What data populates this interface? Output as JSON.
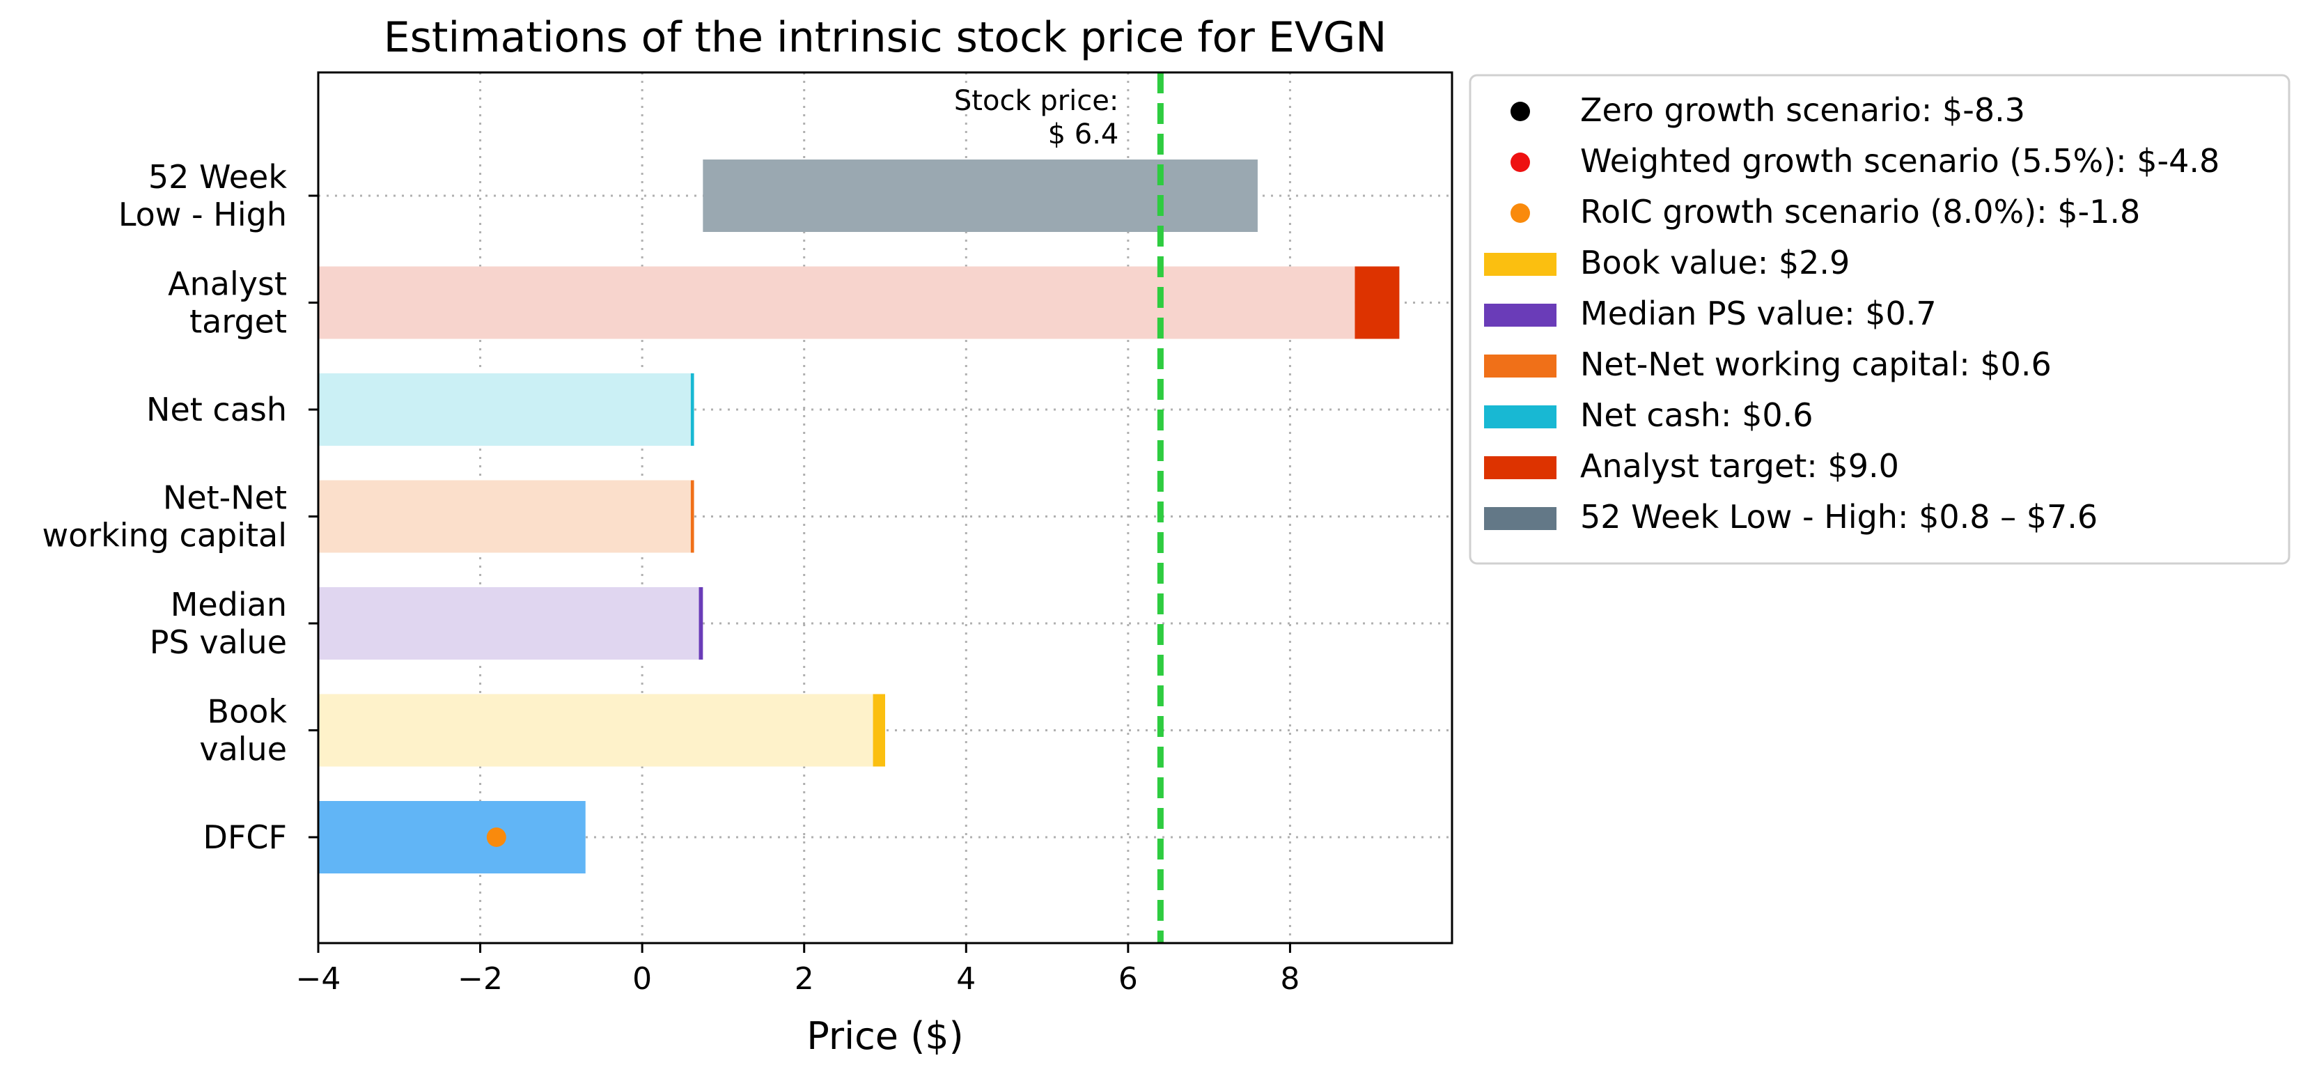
{
  "chart_data": {
    "type": "bar",
    "orientation": "horizontal",
    "title": "Estimations of the intrinsic stock price for EVGN",
    "xlabel": "Price ($)",
    "ylabel": "",
    "xlim": [
      -4,
      10
    ],
    "xticks": [
      -4,
      -2,
      0,
      2,
      4,
      6,
      8
    ],
    "xtick_labels": [
      "−4",
      "−2",
      "0",
      "2",
      "4",
      "6",
      "8"
    ],
    "grid": true,
    "legend_position": "outside-right-top",
    "categories": [
      [
        "52 Week",
        "Low - High"
      ],
      [
        "Analyst",
        "target"
      ],
      [
        "Net cash"
      ],
      [
        "Net-Net",
        "working capital"
      ],
      [
        "Median",
        "PS value"
      ],
      [
        "Book",
        "value"
      ],
      [
        "DFCF"
      ]
    ],
    "bars": [
      {
        "category": 0,
        "start": 0.75,
        "end": 7.6,
        "color": "#9aa8b1"
      },
      {
        "category": 1,
        "start": -4,
        "end": 8.8,
        "color": "#f7d4cd"
      },
      {
        "category": 1,
        "start": 8.8,
        "end": 9.35,
        "color": "#dd3300"
      },
      {
        "category": 2,
        "start": -4,
        "end": 0.6,
        "color": "#cbf0f5"
      },
      {
        "category": 2,
        "start": 0.6,
        "end": 0.64,
        "color": "#18b8d3"
      },
      {
        "category": 3,
        "start": -4,
        "end": 0.6,
        "color": "#fbdfcb"
      },
      {
        "category": 3,
        "start": 0.6,
        "end": 0.64,
        "color": "#f07018"
      },
      {
        "category": 4,
        "start": -4,
        "end": 0.7,
        "color": "#e0d6f0"
      },
      {
        "category": 4,
        "start": 0.7,
        "end": 0.75,
        "color": "#6a3cb8"
      },
      {
        "category": 5,
        "start": -4,
        "end": 2.85,
        "color": "#fef2ca"
      },
      {
        "category": 5,
        "start": 2.85,
        "end": 3.0,
        "color": "#fbbf10"
      },
      {
        "category": 6,
        "start": -4,
        "end": -0.7,
        "color": "#61b5f6"
      }
    ],
    "points": [
      {
        "category": 6,
        "x": -1.8,
        "color": "#f98a0c"
      }
    ],
    "stock_price": {
      "value": 6.4,
      "label_line1": "Stock price:",
      "label_line2": "$ 6.4",
      "color": "#2ecc40"
    },
    "legend": [
      {
        "label": "Zero growth scenario: $-8.3",
        "marker": "dot",
        "color": "#000000"
      },
      {
        "label": "Weighted growth scenario (5.5%): $-4.8",
        "marker": "dot",
        "color": "#ee1111"
      },
      {
        "label": "RoIC growth scenario (8.0%): $-1.8",
        "marker": "dot",
        "color": "#f98a0c"
      },
      {
        "label": "Book value: $2.9",
        "marker": "patch",
        "color": "#fbbf10"
      },
      {
        "label": "Median PS value: $0.7",
        "marker": "patch",
        "color": "#6a3cb8"
      },
      {
        "label": "Net-Net working capital: $0.6",
        "marker": "patch",
        "color": "#f07018"
      },
      {
        "label": "Net cash: $0.6",
        "marker": "patch",
        "color": "#18b8d3"
      },
      {
        "label": "Analyst target: $9.0",
        "marker": "patch",
        "color": "#dd3300"
      },
      {
        "label": "52 Week Low - High: $0.8 – $7.6",
        "marker": "patch",
        "color": "#637887"
      }
    ]
  }
}
